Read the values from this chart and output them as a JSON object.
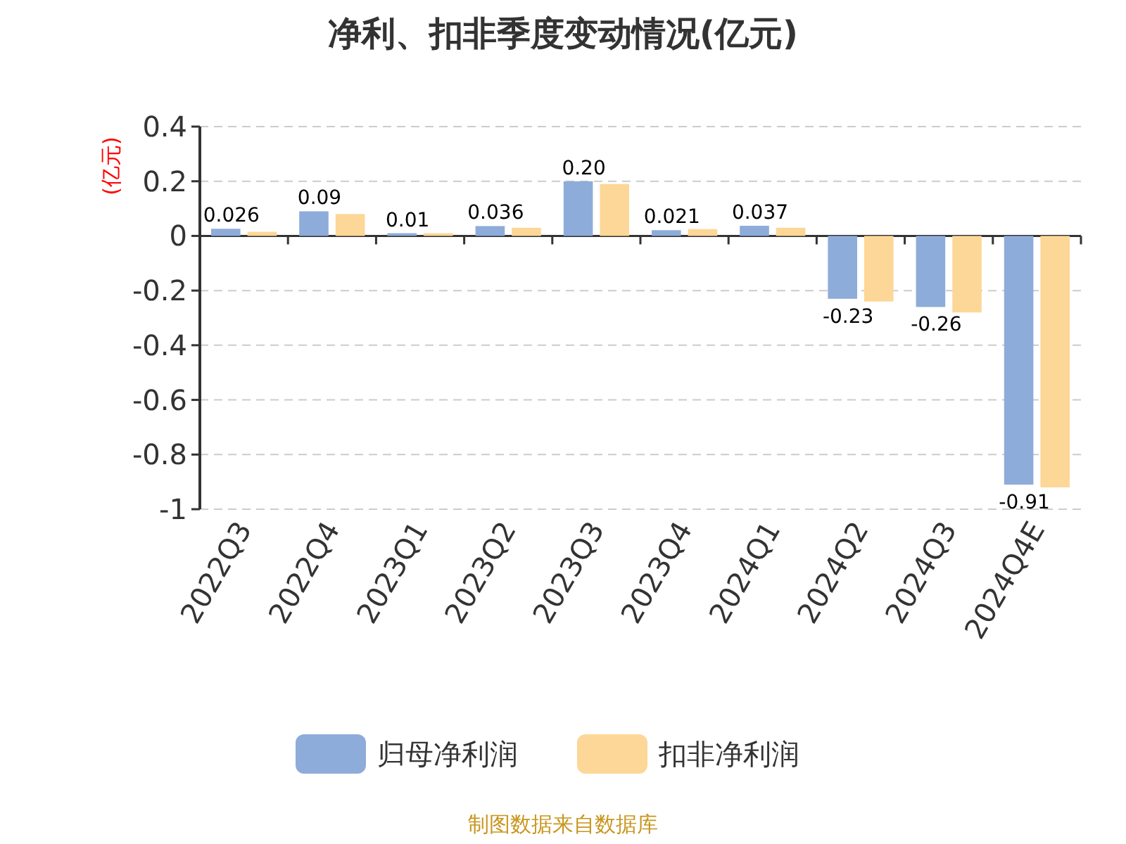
{
  "chart_data": {
    "type": "bar",
    "title": "净利、扣非季度变动情况(亿元)",
    "ylabel": "(亿元)",
    "categories": [
      "2022Q3",
      "2022Q4",
      "2023Q1",
      "2023Q2",
      "2023Q3",
      "2023Q4",
      "2024Q1",
      "2024Q2",
      "2024Q3",
      "2024Q4E"
    ],
    "series": [
      {
        "name": "归母净利润",
        "color": "#8eacd9",
        "values": [
          0.026,
          0.09,
          0.01,
          0.036,
          0.2,
          0.021,
          0.037,
          -0.23,
          -0.26,
          -0.91
        ],
        "value_labels": [
          "0.026",
          "0.09",
          "0.01",
          "0.036",
          "0.20",
          "0.021",
          "0.037",
          "-0.23",
          "-0.26",
          "-0.91"
        ]
      },
      {
        "name": "扣非净利润",
        "color": "#fdd797",
        "values": [
          0.015,
          0.08,
          0.01,
          0.03,
          0.19,
          0.025,
          0.03,
          -0.24,
          -0.28,
          -0.92
        ]
      }
    ],
    "ylim": [
      -1,
      0.4
    ],
    "yticks": [
      0.4,
      0.2,
      0,
      -0.2,
      -0.4,
      -0.6,
      -0.8,
      -1
    ],
    "grid": "y",
    "legend": "bottom",
    "annotations": [
      "制图数据来自数据库"
    ]
  }
}
